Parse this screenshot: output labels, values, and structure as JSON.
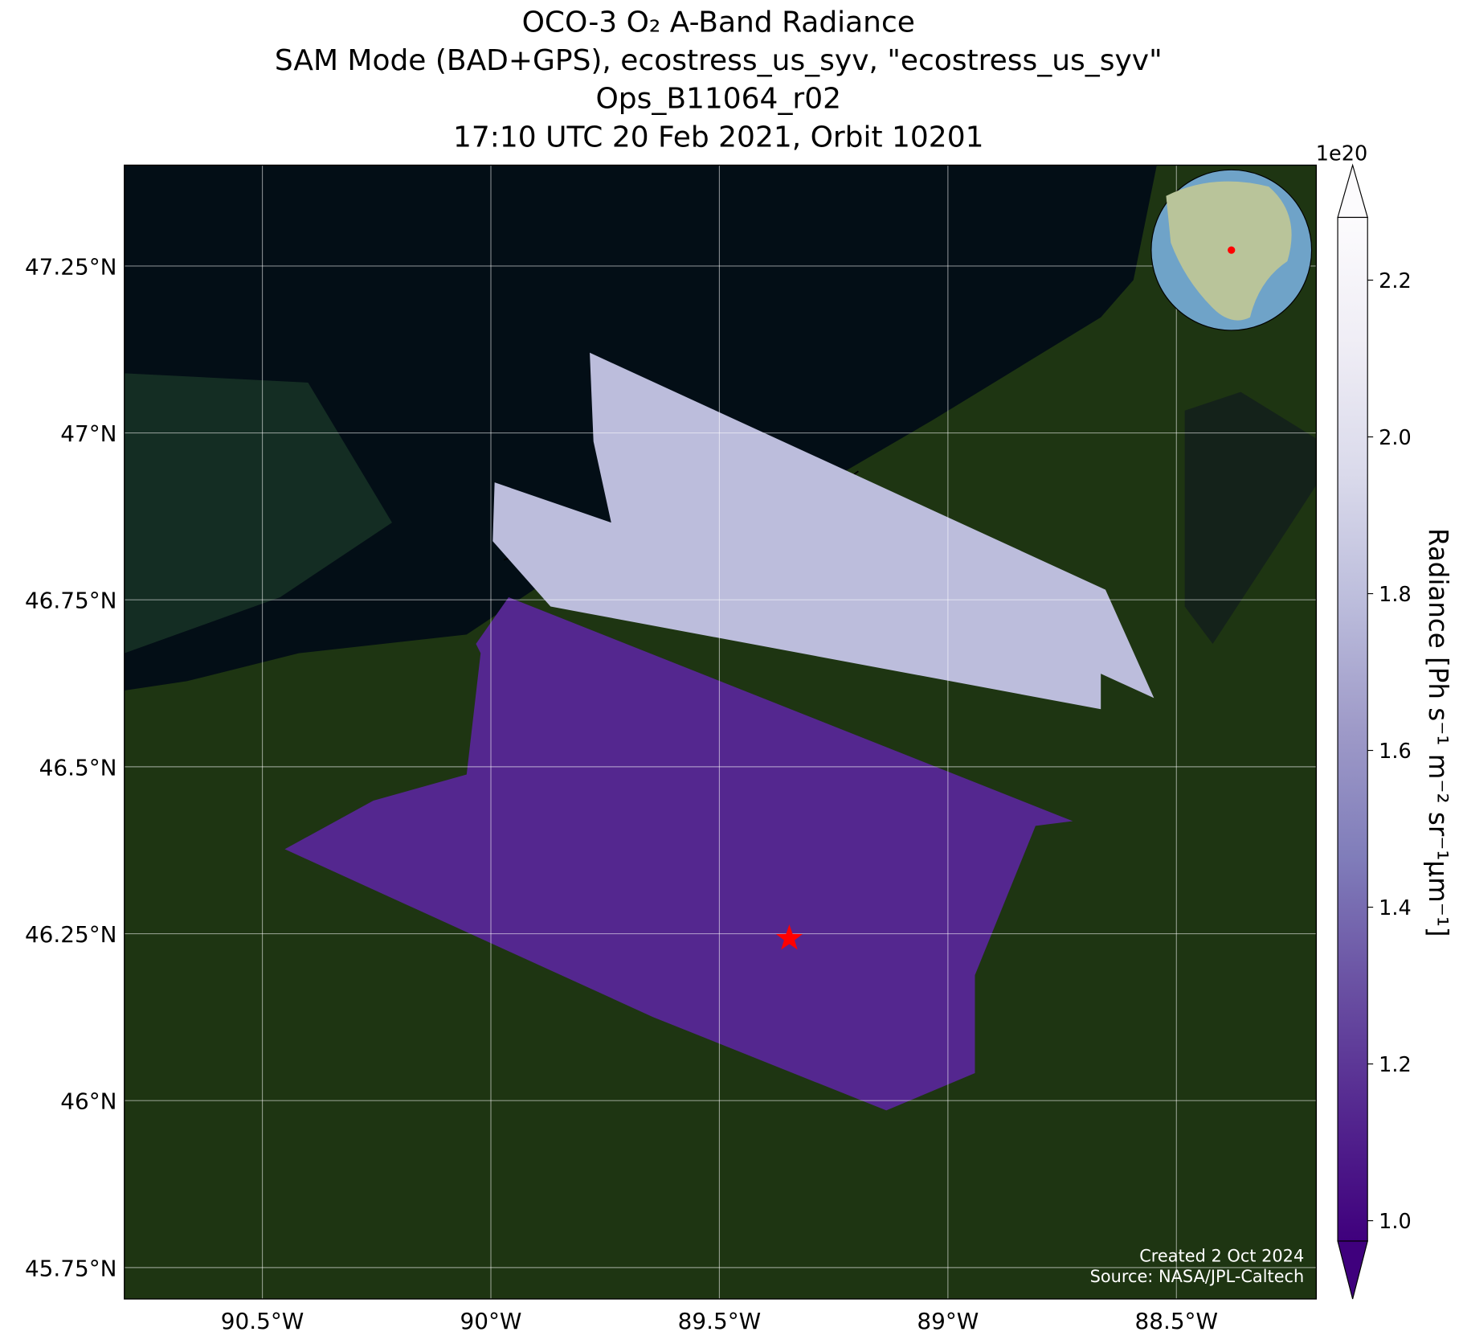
{
  "chart_data": {
    "type": "map",
    "title": [
      "OCO-3 O₂ A-Band Radiance",
      "SAM Mode (BAD+GPS), ecostress_us_syv, \"ecostress_us_syv\"",
      "Ops_B11064_r02",
      "17:10 UTC 20 Feb 2021, Orbit 10201"
    ],
    "xlim": [
      -90.802,
      -88.194
    ],
    "xticks": [
      {
        "value": -90.5,
        "label": "90.5°W"
      },
      {
        "value": -90,
        "label": "90°W"
      },
      {
        "value": -89.5,
        "label": "89.5°W"
      },
      {
        "value": -89,
        "label": "89°W"
      },
      {
        "value": -88.5,
        "label": "88.5°W"
      }
    ],
    "ylim": [
      45.703,
      47.401
    ],
    "yticks": [
      {
        "value": 45.75,
        "label": "45.75°N"
      },
      {
        "value": 46,
        "label": "46°N"
      },
      {
        "value": 46.25,
        "label": "46.25°N"
      },
      {
        "value": 46.5,
        "label": "46.5°N"
      },
      {
        "value": 46.75,
        "label": "46.75°N"
      },
      {
        "value": 47,
        "label": "47°N"
      },
      {
        "value": 47.25,
        "label": "47.25°N"
      }
    ],
    "grid": true,
    "target": {
      "lon": -89.347,
      "lat": 46.243,
      "color": "#ff0000"
    },
    "colorbar": {
      "label": "Radiance [Ph s⁻¹ m⁻² sr⁻¹μm⁻¹]",
      "offset": "1e20",
      "clim": [
        0.974,
        2.28
      ],
      "ticks": [
        {
          "value": 1.0,
          "label": "1.0"
        },
        1.2,
        1.4,
        1.6,
        1.8,
        {
          "value": 2.0,
          "label": "2.0"
        },
        2.2
      ],
      "colormap": [
        "#3f007d",
        "#54278f",
        "#6a51a3",
        "#807dba",
        "#9e9ac8",
        "#bcbddc",
        "#dadaeb",
        "#efedf5",
        "#fcfbfd"
      ]
    },
    "credits": [
      "Created 2 Oct 2024",
      "Source: NASA/JPL-Caltech"
    ]
  }
}
